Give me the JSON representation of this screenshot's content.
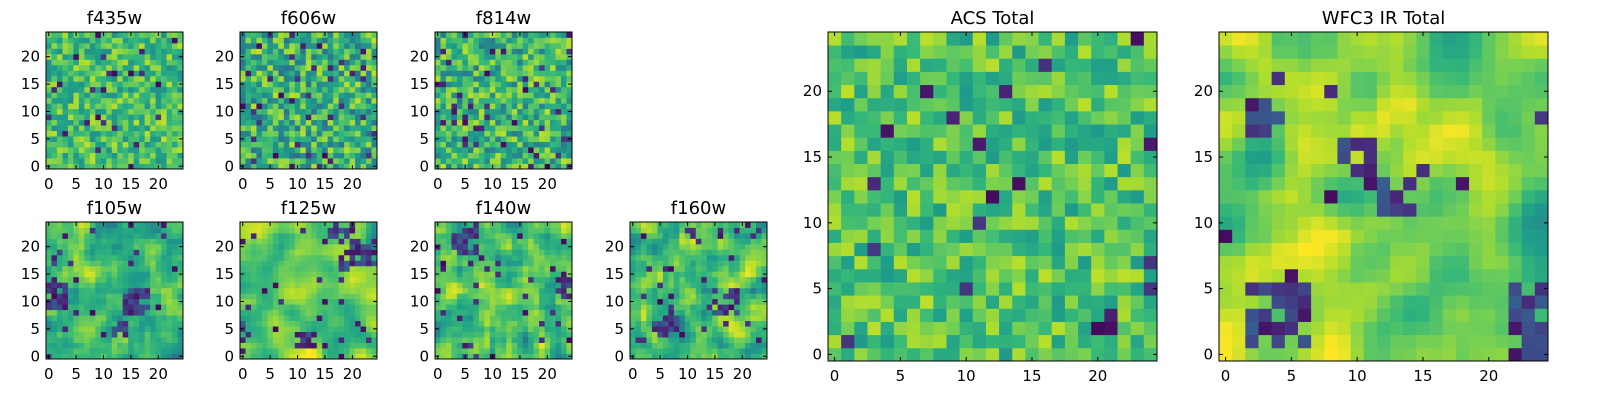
{
  "chart_data": [
    {
      "id": "f435w",
      "type": "heatmap",
      "title": "f435w",
      "colormap": "viridis",
      "grid_size": 25,
      "seed": 11,
      "smooth": 0,
      "bias": 0.7,
      "spread": 0.2,
      "dark_prob": 0.04,
      "hole_count": 0,
      "xlim": [
        0,
        24
      ],
      "ylim": [
        0,
        24
      ],
      "xticks": [
        0,
        5,
        10,
        15,
        20
      ],
      "yticks": [
        0,
        5,
        10,
        15,
        20
      ]
    },
    {
      "id": "f606w",
      "type": "heatmap",
      "title": "f606w",
      "colormap": "viridis",
      "grid_size": 25,
      "seed": 23,
      "smooth": 0,
      "bias": 0.64,
      "spread": 0.26,
      "dark_prob": 0.06,
      "hole_count": 0,
      "xlim": [
        0,
        24
      ],
      "ylim": [
        0,
        24
      ],
      "xticks": [
        0,
        5,
        10,
        15,
        20
      ],
      "yticks": [
        0,
        5,
        10,
        15,
        20
      ]
    },
    {
      "id": "f814w",
      "type": "heatmap",
      "title": "f814w",
      "colormap": "viridis",
      "grid_size": 25,
      "seed": 37,
      "smooth": 0,
      "bias": 0.66,
      "spread": 0.24,
      "dark_prob": 0.07,
      "hole_count": 0,
      "xlim": [
        0,
        24
      ],
      "ylim": [
        0,
        24
      ],
      "xticks": [
        0,
        5,
        10,
        15,
        20
      ],
      "yticks": [
        0,
        5,
        10,
        15,
        20
      ]
    },
    {
      "id": "f105w",
      "type": "heatmap",
      "title": "f105w",
      "colormap": "viridis",
      "grid_size": 25,
      "seed": 41,
      "smooth": 1,
      "bias": 0.66,
      "spread": 0.28,
      "dark_prob": 0.04,
      "hole_count": 4,
      "xlim": [
        0,
        24
      ],
      "ylim": [
        0,
        24
      ],
      "xticks": [
        0,
        5,
        10,
        15,
        20
      ],
      "yticks": [
        0,
        5,
        10,
        15,
        20
      ]
    },
    {
      "id": "f125w",
      "type": "heatmap",
      "title": "f125w",
      "colormap": "viridis",
      "grid_size": 25,
      "seed": 53,
      "smooth": 2,
      "bias": 0.74,
      "spread": 0.3,
      "dark_prob": 0.03,
      "hole_count": 5,
      "xlim": [
        0,
        24
      ],
      "ylim": [
        0,
        24
      ],
      "xticks": [
        0,
        5,
        10,
        15,
        20
      ],
      "yticks": [
        0,
        5,
        10,
        15,
        20
      ]
    },
    {
      "id": "f140w",
      "type": "heatmap",
      "title": "f140w",
      "colormap": "viridis",
      "grid_size": 25,
      "seed": 67,
      "smooth": 1,
      "bias": 0.68,
      "spread": 0.28,
      "dark_prob": 0.04,
      "hole_count": 3,
      "xlim": [
        0,
        24
      ],
      "ylim": [
        0,
        24
      ],
      "xticks": [
        0,
        5,
        10,
        15,
        20
      ],
      "yticks": [
        0,
        5,
        10,
        15,
        20
      ]
    },
    {
      "id": "f160w",
      "type": "heatmap",
      "title": "f160w",
      "colormap": "viridis",
      "grid_size": 25,
      "seed": 79,
      "smooth": 1,
      "bias": 0.7,
      "spread": 0.28,
      "dark_prob": 0.05,
      "hole_count": 3,
      "xlim": [
        0,
        24
      ],
      "ylim": [
        0,
        24
      ],
      "xticks": [
        0,
        5,
        10,
        15,
        20
      ],
      "yticks": [
        0,
        5,
        10,
        15,
        20
      ]
    },
    {
      "id": "acs-total",
      "type": "heatmap",
      "title": "ACS Total",
      "colormap": "viridis",
      "grid_size": 25,
      "seed": 97,
      "smooth": 0,
      "bias": 0.72,
      "spread": 0.18,
      "dark_prob": 0.03,
      "hole_count": 0,
      "xlim": [
        0,
        24
      ],
      "ylim": [
        0,
        24
      ],
      "xticks": [
        0,
        5,
        10,
        15,
        20
      ],
      "yticks": [
        0,
        5,
        10,
        15,
        20
      ]
    },
    {
      "id": "wfc3-ir-total",
      "type": "heatmap",
      "title": "WFC3 IR Total",
      "colormap": "viridis",
      "grid_size": 25,
      "seed": 113,
      "smooth": 2,
      "bias": 0.76,
      "spread": 0.26,
      "dark_prob": 0.02,
      "hole_count": 6,
      "xlim": [
        0,
        24
      ],
      "ylim": [
        0,
        24
      ],
      "xticks": [
        0,
        5,
        10,
        15,
        20
      ],
      "yticks": [
        0,
        5,
        10,
        15,
        20
      ]
    }
  ]
}
